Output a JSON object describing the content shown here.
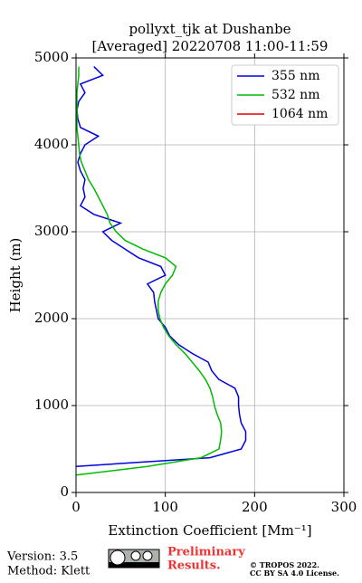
{
  "chart_data": {
    "type": "line",
    "orientation": "vertical",
    "title": "pollyxt_tjk at Dushanbe",
    "subtitle": "[Averaged] 20220708 11:00-11:59",
    "xlabel": "Extinction Coefficient [Mm⁻¹]",
    "ylabel": "Height (m)",
    "xlim": [
      0,
      300
    ],
    "xticks": [
      0,
      100,
      200,
      300
    ],
    "ylim": [
      0,
      5000
    ],
    "yticks": [
      0,
      1000,
      2000,
      3000,
      4000,
      5000
    ],
    "grid": true,
    "legend": "upper right",
    "y": [
      200,
      300,
      400,
      500,
      600,
      700,
      800,
      900,
      1000,
      1100,
      1200,
      1300,
      1400,
      1500,
      1600,
      1700,
      1800,
      1900,
      2000,
      2100,
      2200,
      2300,
      2400,
      2500,
      2600,
      2700,
      2800,
      2900,
      3000,
      3100,
      3200,
      3300,
      3400,
      3500,
      3600,
      3700,
      3800,
      3900,
      4000,
      4100,
      4200,
      4300,
      4400,
      4500,
      4600,
      4700,
      4800,
      4900
    ],
    "series": [
      {
        "name": "355 nm",
        "color": "#0000dd",
        "values": [
          null,
          0,
          150,
          185,
          190,
          190,
          185,
          183,
          182,
          182,
          178,
          160,
          152,
          148,
          130,
          115,
          105,
          100,
          92,
          90,
          88,
          87,
          80,
          100,
          95,
          70,
          55,
          40,
          30,
          50,
          20,
          5,
          10,
          8,
          10,
          5,
          2,
          5,
          10,
          25,
          5,
          2,
          1,
          3,
          10,
          5,
          30,
          20
        ]
      },
      {
        "name": "532 nm",
        "color": "#00bb00",
        "values": [
          0,
          80,
          140,
          160,
          162,
          163,
          162,
          158,
          155,
          153,
          150,
          145,
          138,
          130,
          122,
          112,
          104,
          98,
          94,
          92,
          92,
          95,
          100,
          108,
          112,
          100,
          75,
          55,
          45,
          38,
          35,
          30,
          25,
          20,
          14,
          10,
          6,
          4,
          3,
          2,
          1,
          1,
          1,
          1,
          1,
          2,
          3,
          3
        ]
      },
      {
        "name": "1064 nm",
        "color": "#dd0000",
        "values": [
          null,
          null,
          null,
          null,
          null,
          null,
          null,
          null,
          null,
          null,
          null,
          null,
          null,
          null,
          null,
          null,
          null,
          null,
          null,
          null,
          null,
          null,
          null,
          null,
          null,
          null,
          null,
          null,
          null,
          null,
          null,
          null,
          null,
          null,
          null,
          null,
          null,
          null,
          null,
          null,
          null,
          null,
          null,
          null,
          null,
          null,
          null,
          null
        ]
      }
    ]
  },
  "footer": {
    "version": "Version: 3.5",
    "method": "Method: Klett",
    "preliminary": [
      "Preliminary",
      "Results."
    ],
    "copyright": [
      "© TROPOS 2022.",
      "CC BY SA 4.0 License."
    ]
  }
}
